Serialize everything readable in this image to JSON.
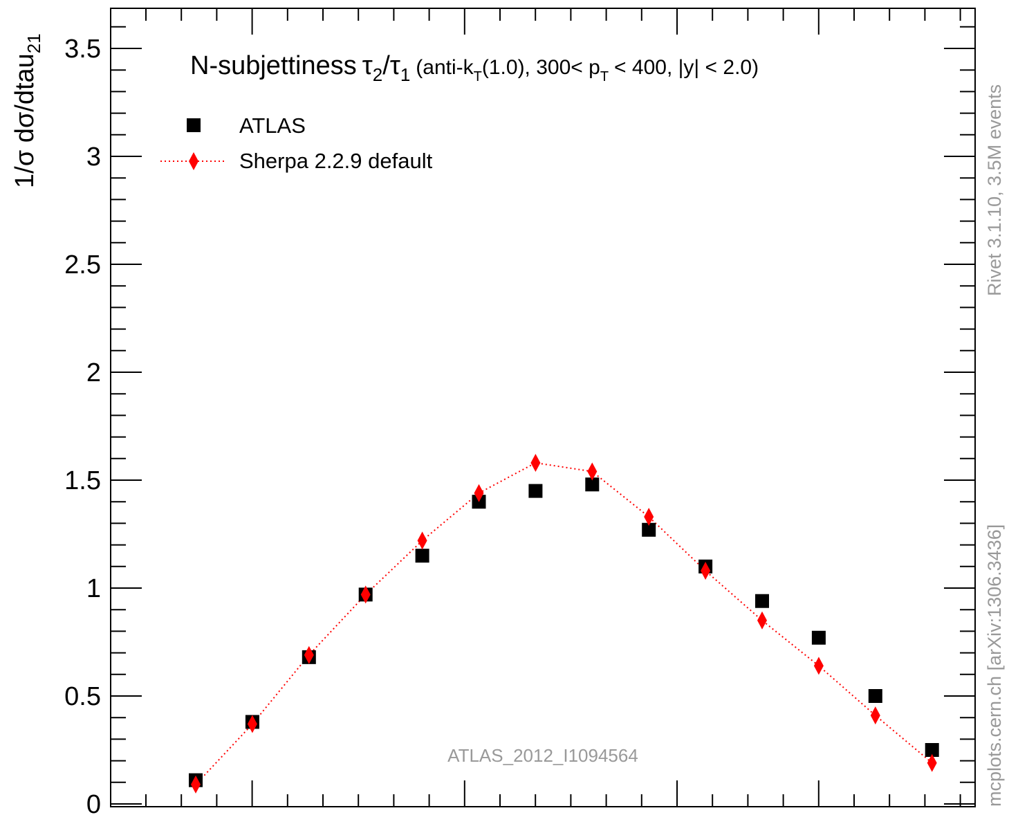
{
  "chart_data": {
    "type": "scatter",
    "title": {
      "main": "N-subjettiness",
      "tau2": "τ",
      "tau2_sub": "2",
      "slash": "/",
      "tau1": "τ",
      "tau1_sub": "1",
      "detail_pre": "(anti-k",
      "kt_sub": "T",
      "detail_mid": "(1.0), 300< p",
      "pt_sub": "T",
      "detail_post": "< 400, |y| < 2.0)"
    },
    "ylabel": {
      "main": "1/σ dσ/dtau",
      "sub": "21"
    },
    "xlabel": "",
    "ylim": [
      0,
      3.7
    ],
    "yticks": [
      {
        "value": 0,
        "label": "0"
      },
      {
        "value": 0.5,
        "label": "0.5"
      },
      {
        "value": 1,
        "label": "1"
      },
      {
        "value": 1.5,
        "label": "1.5"
      },
      {
        "value": 2,
        "label": "2"
      },
      {
        "value": 2.5,
        "label": "2.5"
      },
      {
        "value": 3,
        "label": "3"
      },
      {
        "value": 3.5,
        "label": "3.5"
      }
    ],
    "x_bin_centers": [
      1,
      2,
      3,
      4,
      5,
      6,
      7,
      8,
      9,
      10,
      11,
      12,
      13,
      14
    ],
    "series": [
      {
        "name": "ATLAS",
        "marker": "square",
        "color": "#000000",
        "values": [
          0.11,
          0.38,
          0.68,
          0.97,
          1.15,
          1.4,
          1.45,
          1.48,
          1.27,
          1.1,
          0.94,
          0.77,
          0.5,
          0.25
        ]
      },
      {
        "name": "Sherpa 2.2.9 default",
        "marker": "diamond",
        "line": "dotted",
        "color": "#ff0000",
        "values": [
          0.09,
          0.37,
          0.69,
          0.97,
          1.22,
          1.44,
          1.58,
          1.54,
          1.33,
          1.08,
          0.85,
          0.64,
          0.41,
          0.19
        ]
      }
    ],
    "legend_position": "top-left",
    "grid": false
  },
  "watermark": "ATLAS_2012_I1094564",
  "side_label_top": "Rivet 3.1.10,  3.5M events",
  "side_label_bottom": "mcplots.cern.ch [arXiv:1306.3436]"
}
